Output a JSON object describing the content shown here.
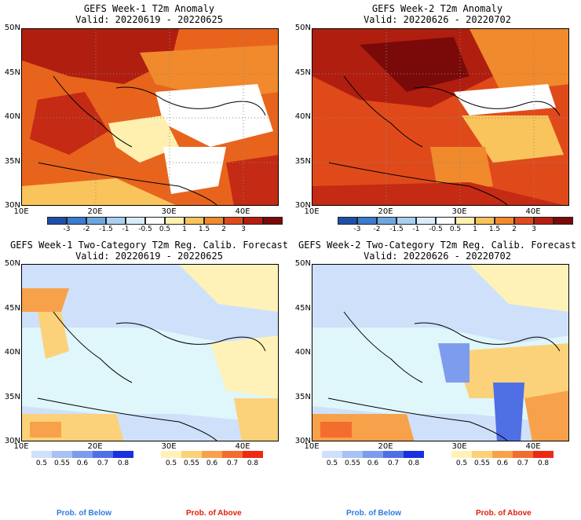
{
  "panels": [
    {
      "title": "GEFS Week-1 T2m Anomaly",
      "valid": "Valid: 20220619 - 20220625"
    },
    {
      "title": "GEFS Week-2 T2m Anomaly",
      "valid": "Valid: 20220626 - 20220702"
    },
    {
      "title": "GEFS Week-1 Two-Category T2m Reg. Calib. Forecast",
      "valid": "Valid: 20220619 - 20220625"
    },
    {
      "title": "GEFS Week-2 Two-Category T2m Reg. Calib. Forecast",
      "valid": "Valid: 20220626 - 20220702"
    }
  ],
  "lat_labels": [
    "50N",
    "45N",
    "40N",
    "35N",
    "30N"
  ],
  "lon_labels": [
    "10E",
    "20E",
    "30E",
    "40E"
  ],
  "anomaly_ticks": [
    "-3",
    "-2",
    "-1.5",
    "-1",
    "-0.5",
    "0.5",
    "1",
    "1.5",
    "2",
    "3"
  ],
  "anomaly_colors": [
    "#1c4fa8",
    "#3a7ad0",
    "#6ea7e0",
    "#a9d0f0",
    "#d8ecf8",
    "#ffffff",
    "#fff0b0",
    "#f9c45c",
    "#f08a2c",
    "#e04a1a",
    "#b81c10",
    "#7a0a0a"
  ],
  "prob_below_ticks": [
    "0.5",
    "0.55",
    "0.6",
    "0.7",
    "0.8"
  ],
  "prob_above_ticks": [
    "0.5",
    "0.55",
    "0.6",
    "0.7",
    "0.8"
  ],
  "prob_below_colors": [
    "#cfe0fa",
    "#a9c2f4",
    "#7e9cee",
    "#4f6fe4",
    "#1830e0"
  ],
  "prob_above_colors": [
    "#fff2b8",
    "#fbd27a",
    "#f7a24a",
    "#f36d2e",
    "#ee2a14"
  ],
  "legend": {
    "below": "Prob. of Below",
    "above": "Prob. of Above"
  },
  "colors": {
    "below_text": "#2e7be0",
    "above_text": "#e0200e"
  }
}
